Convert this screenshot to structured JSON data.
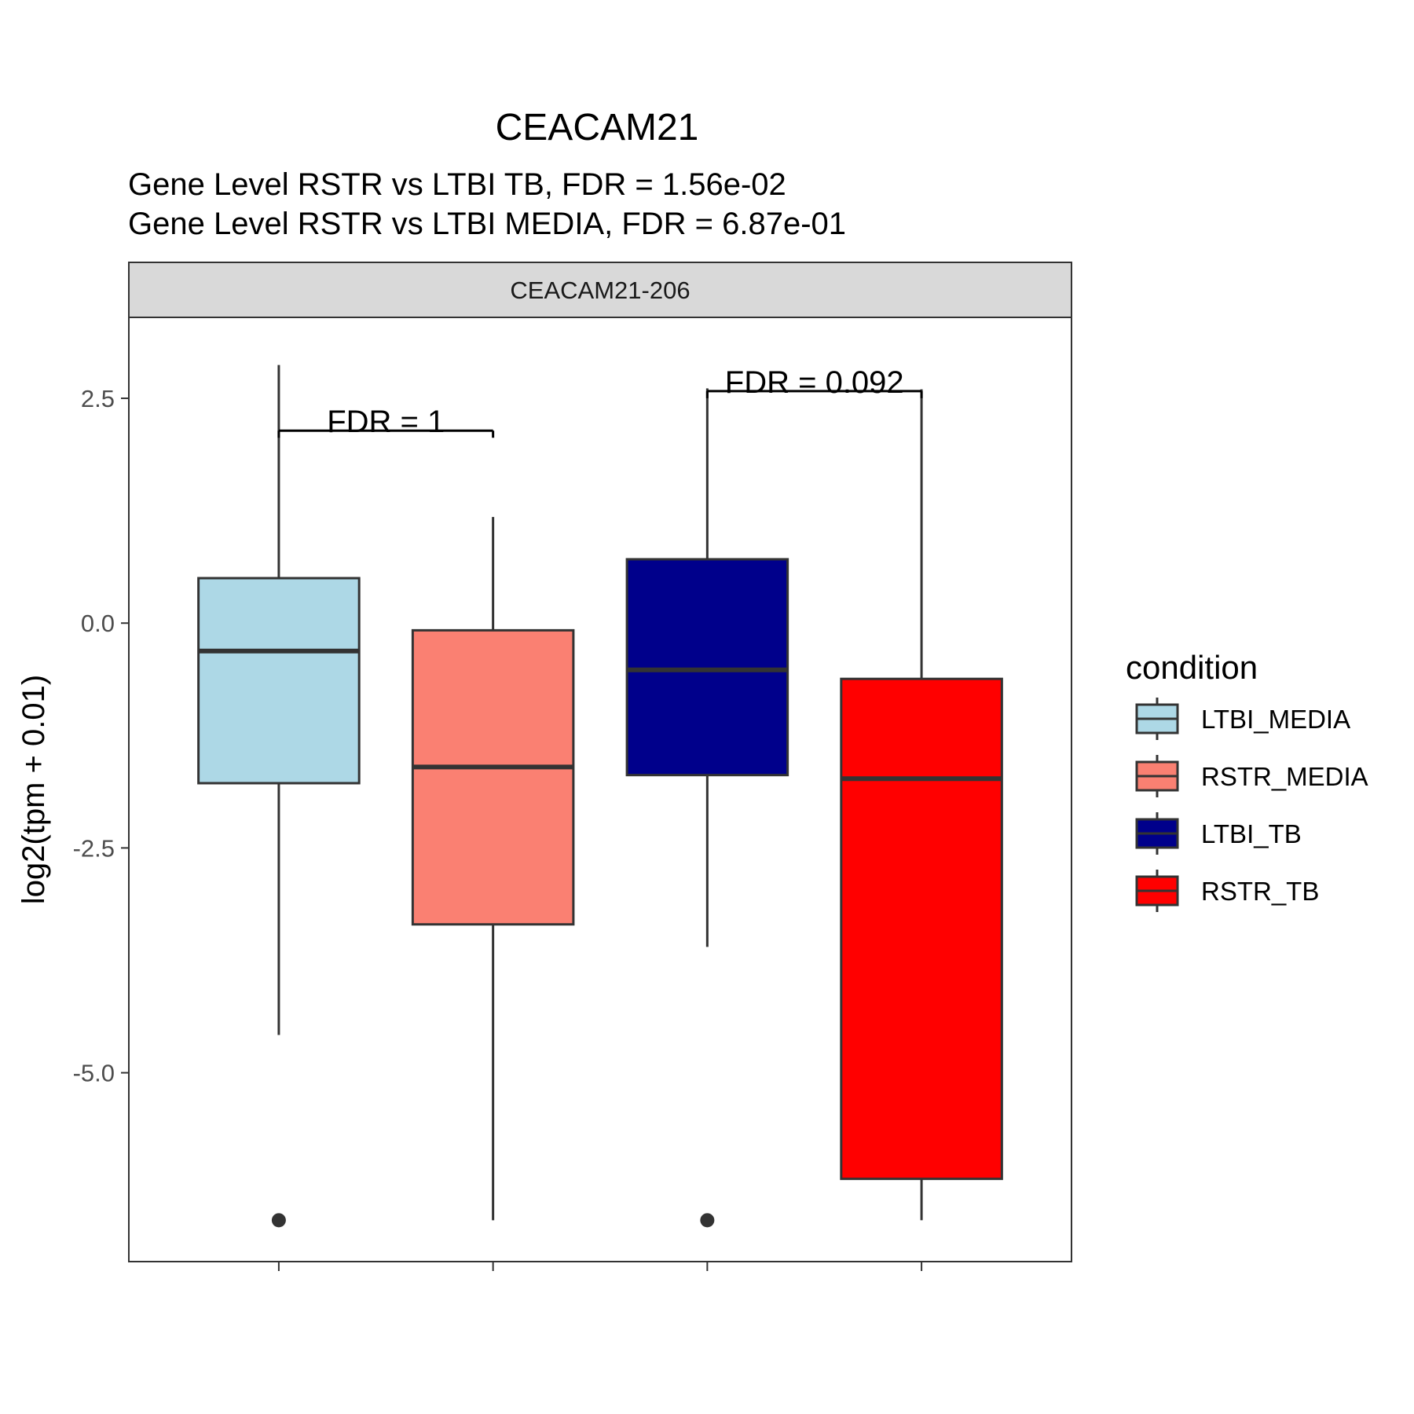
{
  "chart_data": {
    "type": "boxplot",
    "title": "CEACAM21",
    "subtitle_lines": [
      "Gene Level RSTR vs LTBI TB, FDR =  1.56e-02",
      "Gene Level RSTR vs LTBI MEDIA, FDR =  6.87e-01"
    ],
    "facet_label": "CEACAM21-206",
    "ylabel": "log2(tpm + 0.01)",
    "xlabel": "",
    "ylim": [
      -7.1,
      3.4
    ],
    "yticks": [
      2.5,
      0.0,
      -2.5,
      -5.0
    ],
    "ytick_labels": [
      "2.5",
      "0.0",
      "-2.5",
      "-5.0"
    ],
    "grid": false,
    "legend": {
      "title": "condition",
      "position": "right",
      "items": [
        "LTBI_MEDIA",
        "RSTR_MEDIA",
        "LTBI_TB",
        "RSTR_TB"
      ]
    },
    "boxes": [
      {
        "name": "LTBI_MEDIA",
        "color": "#ADD8E6",
        "whisker_low": -4.58,
        "q1": -1.78,
        "median": -0.31,
        "q3": 0.5,
        "whisker_high": 2.87,
        "outliers": [
          -6.64
        ]
      },
      {
        "name": "RSTR_MEDIA",
        "color": "#FA8072",
        "whisker_low": -6.64,
        "q1": -3.35,
        "median": -1.6,
        "q3": -0.08,
        "whisker_high": 1.18,
        "outliers": []
      },
      {
        "name": "LTBI_TB",
        "color": "#00008B",
        "whisker_low": -3.6,
        "q1": -1.69,
        "median": -0.52,
        "q3": 0.71,
        "whisker_high": 2.61,
        "outliers": [
          -6.64
        ]
      },
      {
        "name": "RSTR_TB",
        "color": "#FF0000",
        "whisker_low": -6.64,
        "q1": -6.18,
        "median": -1.73,
        "q3": -0.62,
        "whisker_high": 2.6,
        "outliers": []
      }
    ],
    "annotations": [
      {
        "from": 0,
        "to": 1,
        "y": 2.14,
        "label": "FDR =  1"
      },
      {
        "from": 2,
        "to": 3,
        "y": 2.58,
        "label": "FDR =  0.092"
      }
    ]
  }
}
